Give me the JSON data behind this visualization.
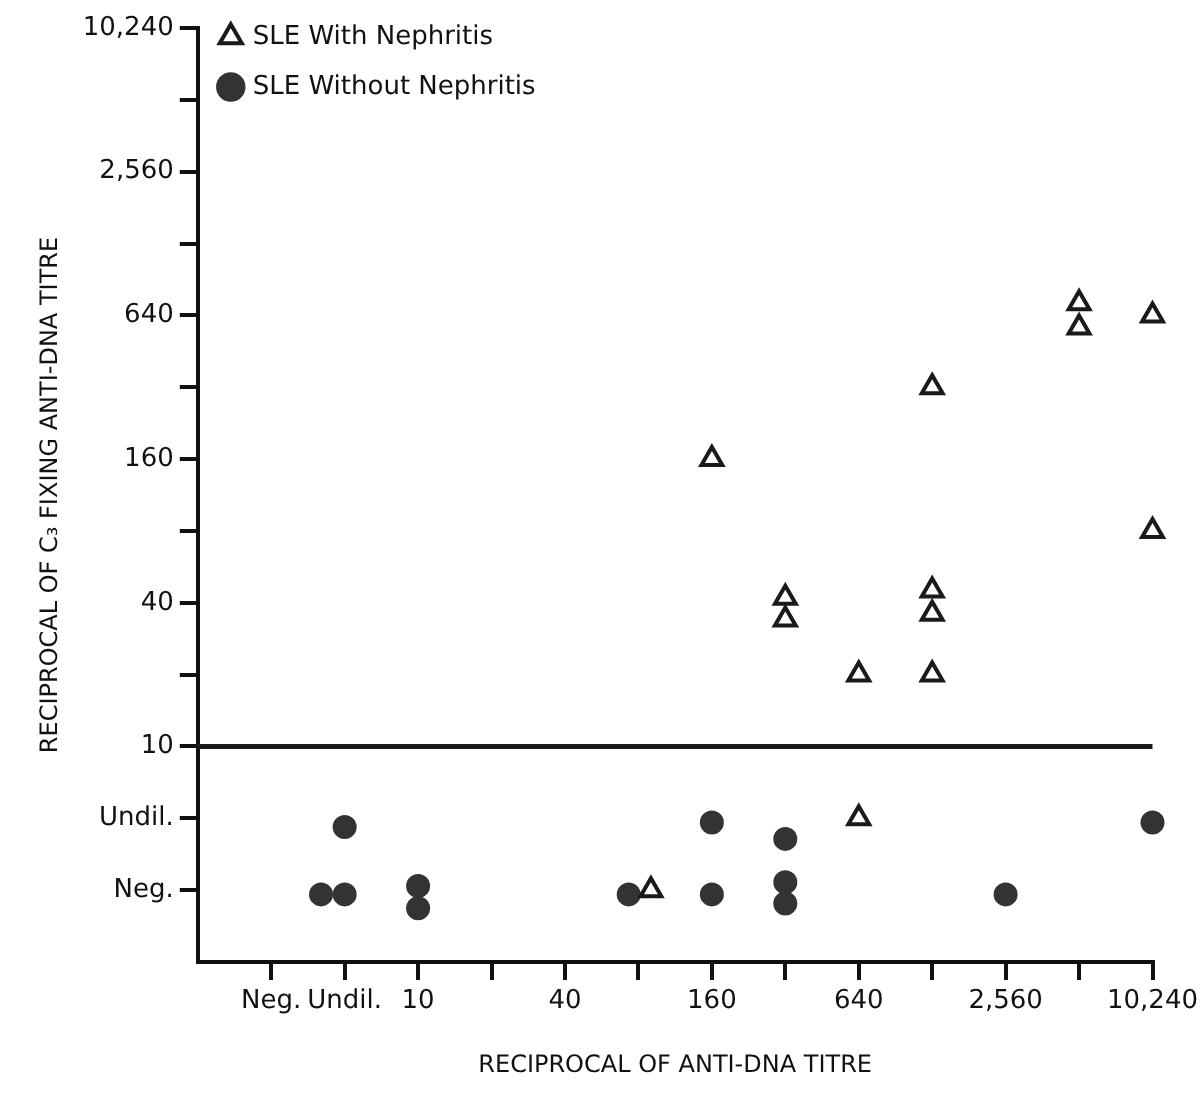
{
  "chart_data": {
    "type": "scatter",
    "xlabel": "RECIPROCAL OF ANTI-DNA TITRE",
    "ylabel": "RECIPROCAL OF C₃ FIXING ANTI-DNA TITRE",
    "log": "xy",
    "legend": "top left",
    "grid": false,
    "xlim": [
      1.25,
      10240
    ],
    "ylim": [
      1.25,
      10240
    ],
    "xticks": [
      {
        "value": 2.5,
        "label": "Neg."
      },
      {
        "value": 5,
        "label": "Undil."
      },
      10,
      {
        "value": 20,
        "label": null
      },
      40,
      {
        "value": 80,
        "label": null
      },
      160,
      {
        "value": 320,
        "label": null
      },
      640,
      {
        "value": 1280,
        "label": null
      },
      {
        "value": 2560,
        "label": "2,560"
      },
      {
        "value": 5120,
        "label": null
      },
      {
        "value": 10240,
        "label": "10,240"
      }
    ],
    "yticks": [
      {
        "value": 2.5,
        "label": "Neg."
      },
      {
        "value": 5,
        "label": "Undil."
      },
      10,
      {
        "value": 20,
        "label": null
      },
      40,
      {
        "value": 80,
        "label": null
      },
      160,
      {
        "value": 320,
        "label": null
      },
      640,
      {
        "value": 1280,
        "label": null
      },
      {
        "value": 2560,
        "label": "2,560"
      },
      {
        "value": 5120,
        "label": null
      },
      {
        "value": 10240,
        "label": "10,240"
      }
    ],
    "ref_lines": [
      {
        "axis": "y",
        "value": 10,
        "color": "#1a1a1a"
      }
    ],
    "series": [
      {
        "name": "SLE With Nephritis",
        "color": "#1a1a1a",
        "marker": "triangle",
        "x": [
          5120,
          5120,
          10240,
          1280,
          160,
          10240,
          320,
          320,
          1280,
          1280,
          640,
          1280,
          640,
          90
        ],
        "values": [
          720,
          570,
          640,
          320,
          160,
          80,
          42,
          34,
          45,
          36,
          20,
          20,
          5,
          2.5
        ]
      },
      {
        "name": "SLE Without Nephritis",
        "color": "#333333",
        "marker": "circle",
        "x": [
          5,
          4,
          5,
          10,
          10,
          73,
          160,
          160,
          320,
          320,
          320,
          2560,
          10240
        ],
        "values": [
          4.6,
          2.4,
          2.4,
          2.6,
          2.1,
          2.4,
          4.8,
          2.4,
          4.1,
          2.7,
          2.2,
          2.4,
          4.8
        ]
      }
    ]
  }
}
